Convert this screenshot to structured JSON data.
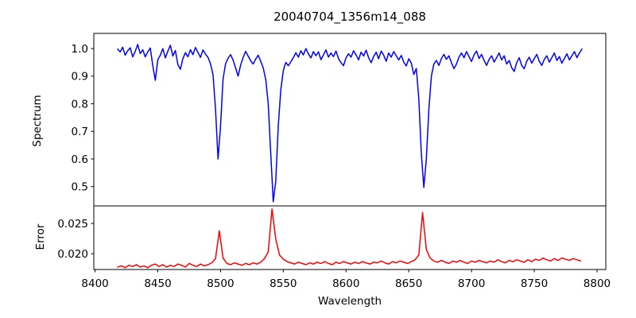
{
  "chart_data": {
    "type": "line",
    "title": "20040704_1356m14_088",
    "xlabel": "Wavelength",
    "xlim": [
      8399,
      8807
    ],
    "xticks": [
      8400,
      8450,
      8500,
      8550,
      8600,
      8650,
      8700,
      8750,
      8800
    ],
    "xtick_labels": [
      "8400",
      "8450",
      "8500",
      "8550",
      "8600",
      "8650",
      "8700",
      "8750",
      "8800"
    ],
    "grid": false,
    "legend": "none",
    "panels": [
      {
        "name": "spectrum",
        "ylabel": "Spectrum",
        "ylim": [
          0.43,
          1.055
        ],
        "yticks": [
          1.0,
          0.9,
          0.8,
          0.7,
          0.6,
          0.5
        ],
        "ytick_labels": [
          "1.0",
          "0.9",
          "0.8",
          "0.7",
          "0.6",
          "0.5"
        ],
        "line_color": "#0000ff",
        "x_start": 8418,
        "x_step": 2,
        "y": [
          0.998,
          0.988,
          1.005,
          0.976,
          0.992,
          1.003,
          0.97,
          0.99,
          1.015,
          0.982,
          0.996,
          0.97,
          0.988,
          1.002,
          0.938,
          0.885,
          0.96,
          0.976,
          1.0,
          0.966,
          0.99,
          1.012,
          0.973,
          0.993,
          0.942,
          0.925,
          0.964,
          0.985,
          0.97,
          0.996,
          0.978,
          1.004,
          0.986,
          0.968,
          0.995,
          0.98,
          0.968,
          0.945,
          0.905,
          0.78,
          0.6,
          0.72,
          0.89,
          0.945,
          0.965,
          0.978,
          0.958,
          0.93,
          0.9,
          0.94,
          0.968,
          0.99,
          0.973,
          0.956,
          0.944,
          0.962,
          0.976,
          0.954,
          0.93,
          0.888,
          0.8,
          0.62,
          0.445,
          0.52,
          0.72,
          0.85,
          0.92,
          0.95,
          0.938,
          0.952,
          0.967,
          0.985,
          0.969,
          0.992,
          0.977,
          1.0,
          0.981,
          0.966,
          0.989,
          0.974,
          0.988,
          0.96,
          0.977,
          0.995,
          0.969,
          0.984,
          0.971,
          0.991,
          0.964,
          0.949,
          0.938,
          0.967,
          0.981,
          0.969,
          0.992,
          0.977,
          0.959,
          0.987,
          0.973,
          0.994,
          0.967,
          0.949,
          0.971,
          0.987,
          0.963,
          0.991,
          0.976,
          0.954,
          0.984,
          0.969,
          0.989,
          0.974,
          0.959,
          0.975,
          0.951,
          0.937,
          0.963,
          0.948,
          0.906,
          0.928,
          0.818,
          0.62,
          0.497,
          0.6,
          0.78,
          0.9,
          0.944,
          0.957,
          0.939,
          0.964,
          0.979,
          0.961,
          0.974,
          0.949,
          0.927,
          0.944,
          0.969,
          0.984,
          0.967,
          0.989,
          0.971,
          0.953,
          0.977,
          0.991,
          0.964,
          0.979,
          0.957,
          0.939,
          0.961,
          0.974,
          0.951,
          0.967,
          0.984,
          0.959,
          0.974,
          0.944,
          0.957,
          0.931,
          0.917,
          0.949,
          0.967,
          0.939,
          0.927,
          0.954,
          0.969,
          0.947,
          0.964,
          0.979,
          0.954,
          0.939,
          0.961,
          0.974,
          0.951,
          0.967,
          0.984,
          0.957,
          0.971,
          0.947,
          0.964,
          0.981,
          0.959,
          0.974,
          0.989,
          0.967,
          0.984,
          0.998
        ]
      },
      {
        "name": "error",
        "ylabel": "Error",
        "ylim": [
          0.0174,
          0.0279
        ],
        "yticks": [
          0.025,
          0.02
        ],
        "ytick_labels": [
          "0.025",
          "0.020"
        ],
        "line_color": "#ff0000",
        "x_start": 8418,
        "x_step": 3,
        "y": [
          0.0178,
          0.018,
          0.0177,
          0.0181,
          0.0179,
          0.0182,
          0.0178,
          0.018,
          0.0177,
          0.0181,
          0.0183,
          0.0179,
          0.0182,
          0.0178,
          0.0181,
          0.0179,
          0.0183,
          0.0181,
          0.0178,
          0.0184,
          0.0181,
          0.0179,
          0.0183,
          0.018,
          0.0182,
          0.0185,
          0.0192,
          0.0238,
          0.0193,
          0.0184,
          0.0182,
          0.0185,
          0.0183,
          0.0181,
          0.0184,
          0.0182,
          0.0185,
          0.0183,
          0.0186,
          0.0192,
          0.0203,
          0.0274,
          0.0224,
          0.0198,
          0.0191,
          0.0187,
          0.0185,
          0.0183,
          0.0186,
          0.0184,
          0.0182,
          0.0185,
          0.0183,
          0.0186,
          0.0184,
          0.0187,
          0.0184,
          0.0182,
          0.0186,
          0.0184,
          0.0187,
          0.0185,
          0.0183,
          0.0186,
          0.0184,
          0.0187,
          0.0185,
          0.0183,
          0.0186,
          0.0185,
          0.0188,
          0.0185,
          0.0183,
          0.0187,
          0.0185,
          0.0188,
          0.0186,
          0.0184,
          0.0187,
          0.019,
          0.0198,
          0.0268,
          0.0207,
          0.0193,
          0.0188,
          0.0186,
          0.0189,
          0.0186,
          0.0184,
          0.0188,
          0.0186,
          0.0189,
          0.0186,
          0.0184,
          0.0188,
          0.0186,
          0.0189,
          0.0187,
          0.0185,
          0.0188,
          0.0186,
          0.019,
          0.0187,
          0.0185,
          0.0189,
          0.0187,
          0.019,
          0.0188,
          0.0186,
          0.019,
          0.0187,
          0.0191,
          0.0189,
          0.0193,
          0.019,
          0.0188,
          0.0192,
          0.0189,
          0.0193,
          0.0191,
          0.0189,
          0.0192,
          0.019,
          0.0188
        ]
      }
    ]
  }
}
